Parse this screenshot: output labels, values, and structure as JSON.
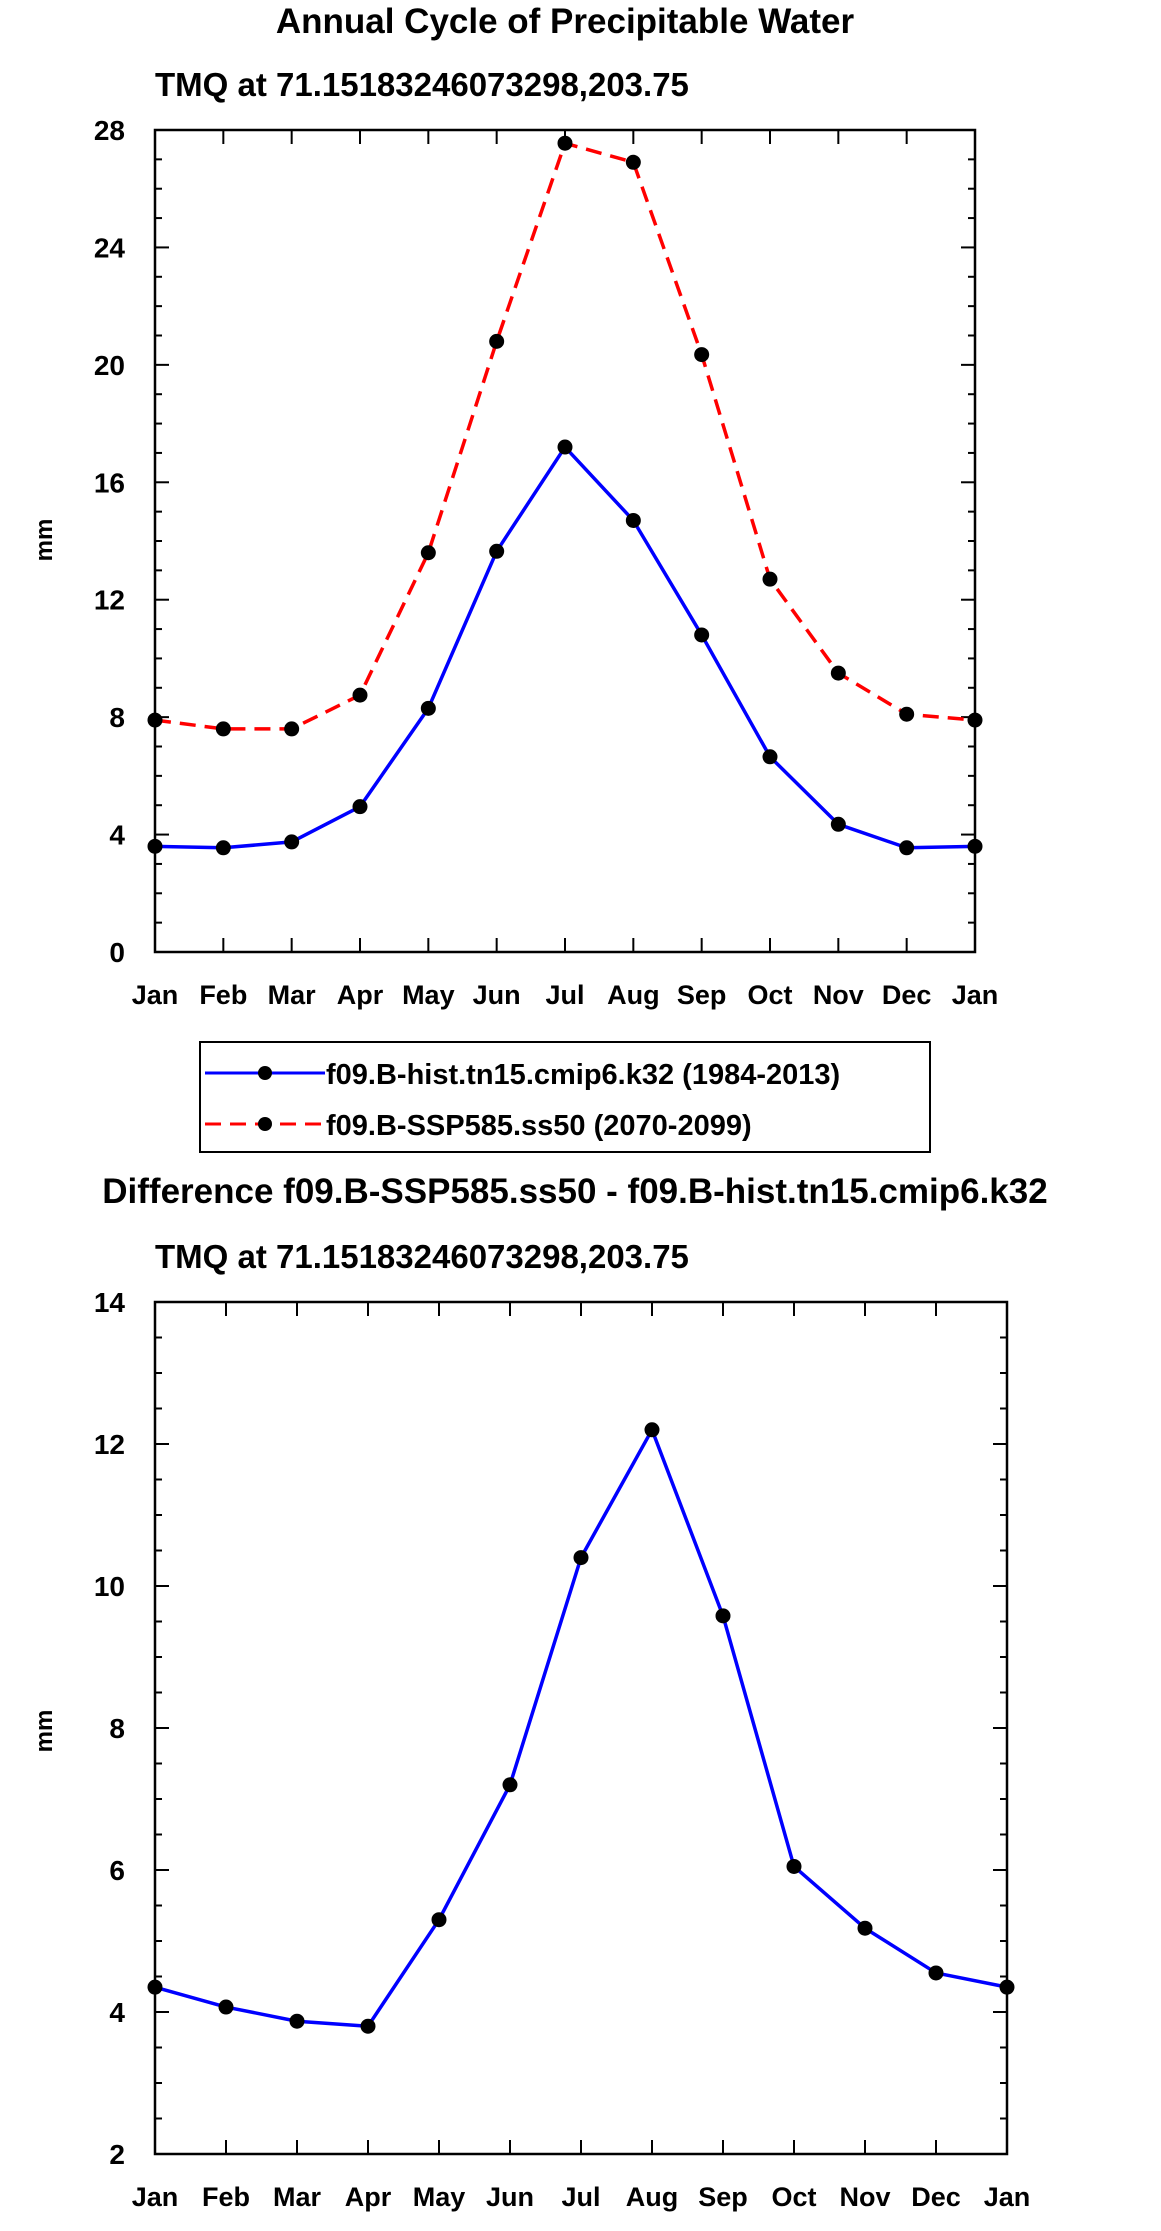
{
  "main_title": "Annual Cycle of Precipitable Water",
  "chart_data": [
    {
      "type": "line",
      "subtitle": "TMQ at 71.15183246073298,203.75",
      "ylabel": "mm",
      "xlabel": "",
      "ylim": [
        0,
        28
      ],
      "yticks": [
        0,
        4,
        8,
        12,
        16,
        20,
        24,
        28
      ],
      "categories": [
        "Jan",
        "Feb",
        "Mar",
        "Apr",
        "May",
        "Jun",
        "Jul",
        "Aug",
        "Sep",
        "Oct",
        "Nov",
        "Dec",
        "Jan"
      ],
      "series": [
        {
          "name": "f09.B-hist.tn15.cmip6.k32 (1984-2013)",
          "color": "#0000ff",
          "dash": "solid",
          "values": [
            3.6,
            3.55,
            3.75,
            4.95,
            8.3,
            13.65,
            17.2,
            14.7,
            10.8,
            6.65,
            4.35,
            3.55,
            3.6
          ]
        },
        {
          "name": "f09.B-SSP585.ss50 (2070-2099)",
          "color": "#ff0000",
          "dash": "dashed",
          "values": [
            7.9,
            7.6,
            7.6,
            8.75,
            13.6,
            20.8,
            27.55,
            26.9,
            20.35,
            12.7,
            9.5,
            8.1,
            7.9
          ]
        }
      ],
      "legend_position": "bottom-center"
    },
    {
      "type": "line",
      "title": "Difference f09.B-SSP585.ss50 - f09.B-hist.tn15.cmip6.k32",
      "subtitle": "TMQ at 71.15183246073298,203.75",
      "ylabel": "mm",
      "xlabel": "",
      "ylim": [
        2,
        14
      ],
      "yticks": [
        2,
        4,
        6,
        8,
        10,
        12,
        14
      ],
      "categories": [
        "Jan",
        "Feb",
        "Mar",
        "Apr",
        "May",
        "Jun",
        "Jul",
        "Aug",
        "Sep",
        "Oct",
        "Nov",
        "Dec",
        "Jan"
      ],
      "series": [
        {
          "name": "Difference",
          "color": "#0000ff",
          "dash": "solid",
          "values": [
            4.35,
            4.07,
            3.87,
            3.8,
            5.3,
            7.2,
            10.4,
            12.2,
            9.58,
            6.05,
            5.18,
            4.55,
            4.35
          ]
        }
      ]
    }
  ]
}
